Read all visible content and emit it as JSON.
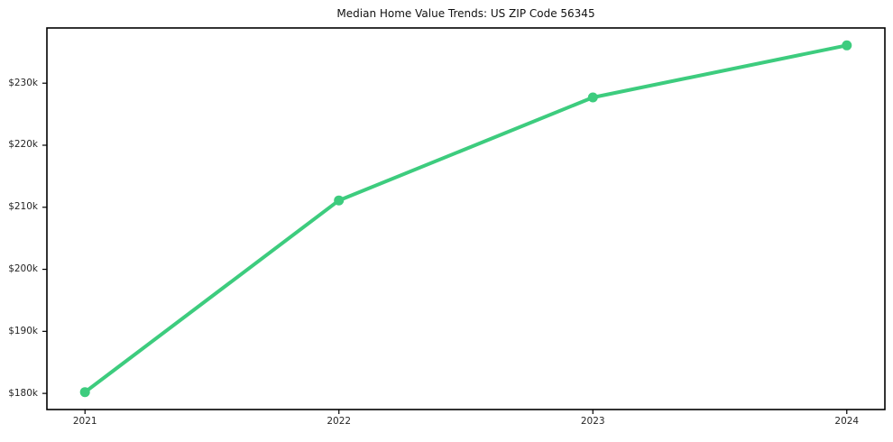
{
  "chart_data": {
    "type": "line",
    "title": "Median Home Value Trends: US ZIP Code 56345",
    "x": [
      2021,
      2022,
      2023,
      2024
    ],
    "series": [
      {
        "name": "Median Home Value",
        "values": [
          180200,
          211100,
          227700,
          236100
        ],
        "color": "#3dcc7e",
        "marker": "circle"
      }
    ],
    "x_ticks": [
      2021,
      2022,
      2023,
      2024
    ],
    "x_tick_labels": [
      "2021",
      "2022",
      "2023",
      "2024"
    ],
    "y_ticks": [
      180000,
      190000,
      200000,
      210000,
      220000,
      230000
    ],
    "y_tick_labels": [
      "$180k",
      "$190k",
      "$200k",
      "$210k",
      "$220k",
      "$230k"
    ],
    "xlim": [
      2020.85,
      2024.15
    ],
    "ylim": [
      177400,
      238900
    ],
    "xlabel": "",
    "ylabel": "",
    "grid": false,
    "legend": "none"
  },
  "colors": {
    "line": "#3dcc7e",
    "axis": "#000000",
    "tick_text": "#262626",
    "title_text": "#111111",
    "background": "#ffffff"
  }
}
